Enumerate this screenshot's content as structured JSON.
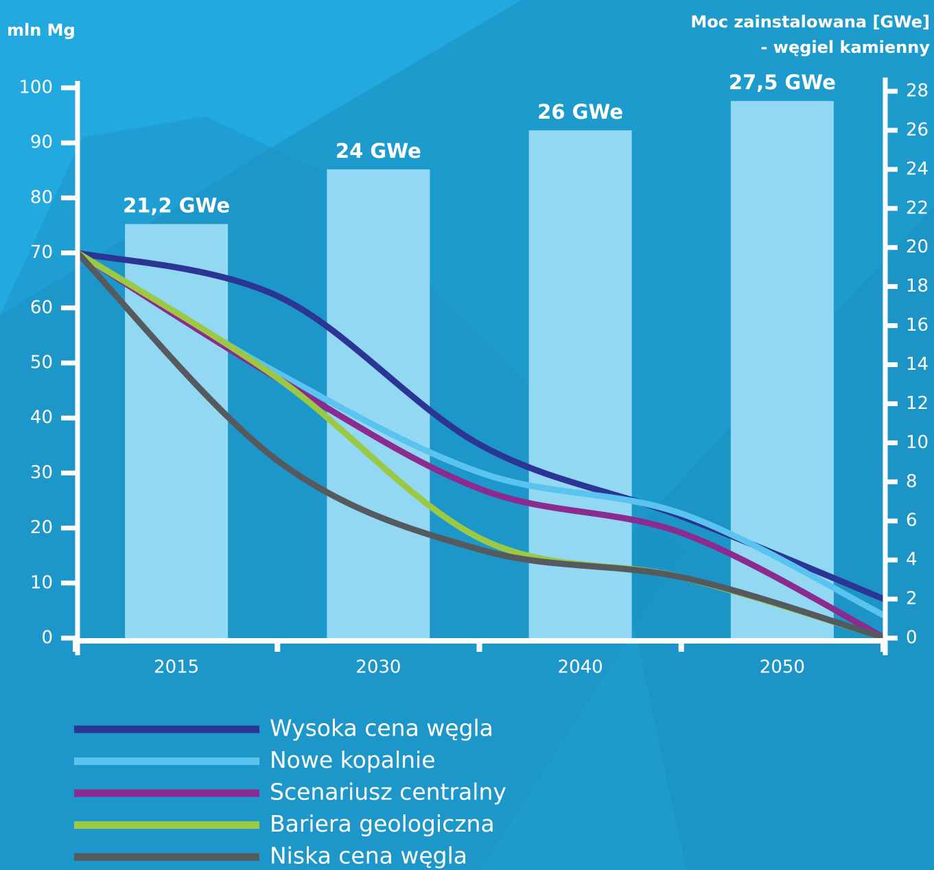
{
  "chart_data": [
    {
      "type": "bar",
      "y2label": [
        "Moc zainstalowana [GWe]",
        "- węgiel kamienny"
      ],
      "categories": [
        "2015",
        "2030",
        "2040",
        "2050"
      ],
      "values": [
        21.2,
        24,
        26,
        27.5
      ],
      "value_labels": [
        "21,2 GWe",
        "24 GWe",
        "26 GWe",
        "27,5 GWe"
      ],
      "color": "#92d8f3",
      "y2lim": [
        0,
        28
      ],
      "y2ticks": [
        0,
        2,
        4,
        6,
        8,
        10,
        12,
        14,
        16,
        18,
        20,
        22,
        24,
        26,
        28
      ]
    },
    {
      "type": "line",
      "ylabel": "mln Mg",
      "categories": [
        null,
        null,
        null,
        null,
        null
      ],
      "ylim": [
        0,
        100
      ],
      "yticks": [
        0,
        10,
        20,
        30,
        40,
        50,
        60,
        70,
        80,
        90,
        100
      ],
      "series": [
        {
          "name": "Wysoka cena węgla",
          "color": "#2b3594",
          "values": [
            70,
            62,
            35,
            22,
            7
          ]
        },
        {
          "name": "Nowe kopalnie",
          "color": "#5bc3f0",
          "values": [
            70,
            48,
            30,
            22.5,
            4
          ]
        },
        {
          "name": "Scenariusz centralny",
          "color": "#8b2a8f",
          "values": [
            70,
            47,
            27,
            19,
            0
          ]
        },
        {
          "name": "Bariera geologiczna",
          "color": "#9bc943",
          "values": [
            70,
            47,
            18,
            11,
            0
          ]
        },
        {
          "name": "Niska cena węgla",
          "color": "#555a5e",
          "values": [
            70,
            32,
            16,
            11,
            0
          ]
        }
      ]
    }
  ]
}
